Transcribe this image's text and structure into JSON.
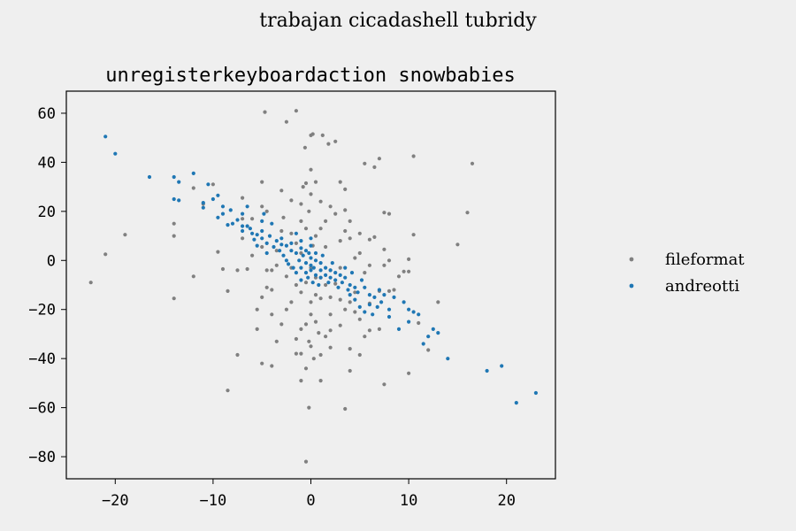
{
  "chart_data": {
    "type": "scatter",
    "suptitle": "trabajan cicadashell tubridy",
    "title": "unregisterkeyboardaction snowbabies",
    "xlabel": "",
    "ylabel": "",
    "xlim": [
      -25,
      25
    ],
    "ylim": [
      -89,
      69
    ],
    "xticks": [
      -20,
      -10,
      0,
      10,
      20
    ],
    "yticks": [
      -80,
      -60,
      -40,
      -20,
      0,
      20,
      40,
      60
    ],
    "xtick_labels": [
      "−20",
      "−10",
      "0",
      "10",
      "20"
    ],
    "ytick_labels": [
      "−80",
      "−60",
      "−40",
      "−20",
      "0",
      "20",
      "40",
      "60"
    ],
    "grid": false,
    "legend_position": "right",
    "series": [
      {
        "name": "fileformat",
        "color": "#808080",
        "points": [
          [
            -22.5,
            -9
          ],
          [
            -21,
            2.5
          ],
          [
            -19,
            10.5
          ],
          [
            -14,
            15
          ],
          [
            -14,
            10
          ],
          [
            -14,
            -15.5
          ],
          [
            -12,
            29.5
          ],
          [
            -12,
            -6.5
          ],
          [
            -11,
            23
          ],
          [
            -10,
            31
          ],
          [
            -9.5,
            3.5
          ],
          [
            -9,
            -3.5
          ],
          [
            -8.5,
            -12.5
          ],
          [
            -8.5,
            -53
          ],
          [
            -7.5,
            -4
          ],
          [
            -7.5,
            -38.5
          ],
          [
            -7,
            25.5
          ],
          [
            -7,
            17
          ],
          [
            -7,
            9
          ],
          [
            -6.5,
            -3.5
          ],
          [
            -6,
            17
          ],
          [
            -6,
            2
          ],
          [
            -5.5,
            -20
          ],
          [
            -5.5,
            -28
          ],
          [
            -5,
            32
          ],
          [
            -5,
            22
          ],
          [
            -5,
            5.5
          ],
          [
            -5,
            -15
          ],
          [
            -5,
            -42
          ],
          [
            -4.7,
            60.5
          ],
          [
            -4.5,
            -4
          ],
          [
            -4.5,
            -11
          ],
          [
            -4.5,
            20
          ],
          [
            -4,
            -4
          ],
          [
            -4,
            -12
          ],
          [
            -4,
            -22
          ],
          [
            -4,
            -43
          ],
          [
            -3.5,
            -33
          ],
          [
            -3.5,
            -2
          ],
          [
            -3.5,
            4
          ],
          [
            -3,
            -26
          ],
          [
            -3,
            28.5
          ],
          [
            -3,
            12
          ],
          [
            -2.8,
            17.5
          ],
          [
            -2.5,
            56.5
          ],
          [
            -2.5,
            -6.5
          ],
          [
            -2.5,
            -20
          ],
          [
            -2,
            -17
          ],
          [
            -2,
            -3
          ],
          [
            -2,
            11
          ],
          [
            -2,
            24.5
          ],
          [
            -1.5,
            61
          ],
          [
            -1.5,
            -32
          ],
          [
            -1.5,
            -38
          ],
          [
            -1.5,
            -10
          ],
          [
            -1.5,
            7
          ],
          [
            -1,
            -38
          ],
          [
            -1,
            -28
          ],
          [
            -1,
            -13
          ],
          [
            -1,
            -49
          ],
          [
            -1,
            16
          ],
          [
            -1,
            23
          ],
          [
            -1,
            3
          ],
          [
            -0.8,
            30
          ],
          [
            -0.6,
            46
          ],
          [
            -0.5,
            31.5
          ],
          [
            -0.5,
            13
          ],
          [
            -0.5,
            -26
          ],
          [
            -0.5,
            -9
          ],
          [
            -0.5,
            -44
          ],
          [
            -0.2,
            20
          ],
          [
            -0.2,
            -33
          ],
          [
            -0.2,
            -60
          ],
          [
            -0.5,
            -82
          ],
          [
            0,
            37
          ],
          [
            0,
            27
          ],
          [
            0,
            -3
          ],
          [
            0,
            -17
          ],
          [
            0,
            -22
          ],
          [
            0,
            -35
          ],
          [
            0,
            51
          ],
          [
            0.2,
            51.5
          ],
          [
            0.2,
            6
          ],
          [
            0.3,
            -40
          ],
          [
            0.5,
            -25
          ],
          [
            0.5,
            -14
          ],
          [
            0.5,
            32
          ],
          [
            0.5,
            10
          ],
          [
            0.5,
            -7
          ],
          [
            0.8,
            -29.5
          ],
          [
            1,
            -15.5
          ],
          [
            1,
            24
          ],
          [
            1,
            13
          ],
          [
            1,
            -7
          ],
          [
            1,
            -49
          ],
          [
            1,
            -38.5
          ],
          [
            1.2,
            51
          ],
          [
            1.5,
            -31
          ],
          [
            1.5,
            16
          ],
          [
            1.5,
            -10
          ],
          [
            1.5,
            5.5
          ],
          [
            1.8,
            47.5
          ],
          [
            2,
            -22
          ],
          [
            2,
            22
          ],
          [
            2,
            -4
          ],
          [
            2,
            -28.5
          ],
          [
            2,
            -35.5
          ],
          [
            2,
            -15
          ],
          [
            2.5,
            19
          ],
          [
            2.5,
            -9.5
          ],
          [
            2.5,
            48.5
          ],
          [
            3,
            32
          ],
          [
            3,
            8
          ],
          [
            3,
            -16
          ],
          [
            3,
            -26.5
          ],
          [
            3,
            -3
          ],
          [
            3.5,
            -60.5
          ],
          [
            3.5,
            29
          ],
          [
            3.5,
            -20
          ],
          [
            3.5,
            12
          ],
          [
            3.5,
            20.5
          ],
          [
            4,
            -36
          ],
          [
            4,
            16
          ],
          [
            4,
            -45
          ],
          [
            4,
            -17
          ],
          [
            4,
            9
          ],
          [
            4.5,
            -21
          ],
          [
            4.5,
            1
          ],
          [
            4.5,
            -13
          ],
          [
            5,
            -38.5
          ],
          [
            5,
            3
          ],
          [
            5,
            -24
          ],
          [
            5,
            11
          ],
          [
            5.5,
            39.5
          ],
          [
            5.5,
            -5
          ],
          [
            5.5,
            -31
          ],
          [
            6,
            -28.5
          ],
          [
            6,
            8.5
          ],
          [
            6,
            -17.5
          ],
          [
            6,
            -2
          ],
          [
            6.5,
            9.5
          ],
          [
            6.5,
            38
          ],
          [
            7,
            41.5
          ],
          [
            7,
            -28
          ],
          [
            7,
            -12.5
          ],
          [
            7.5,
            19.5
          ],
          [
            7.5,
            4.5
          ],
          [
            7.5,
            -2
          ],
          [
            7.5,
            -50.5
          ],
          [
            8,
            19
          ],
          [
            8,
            -12.5
          ],
          [
            8,
            0
          ],
          [
            8.5,
            -12
          ],
          [
            9,
            -6.5
          ],
          [
            9.5,
            -4.5
          ],
          [
            10,
            -4.5
          ],
          [
            10,
            0.5
          ],
          [
            10,
            -46
          ],
          [
            10.5,
            42.5
          ],
          [
            10.5,
            10.5
          ],
          [
            11,
            -25.5
          ],
          [
            12,
            -36.5
          ],
          [
            13,
            -17
          ],
          [
            15,
            6.5
          ],
          [
            16,
            19.5
          ],
          [
            16.5,
            39.5
          ]
        ]
      },
      {
        "name": "andreotti",
        "color": "#1f77b4",
        "points": [
          [
            -21,
            50.5
          ],
          [
            -20,
            43.5
          ],
          [
            -16.5,
            34
          ],
          [
            -14,
            25
          ],
          [
            -14,
            34
          ],
          [
            -13.5,
            24.5
          ],
          [
            -13.5,
            32
          ],
          [
            -12,
            35.5
          ],
          [
            -11,
            23.5
          ],
          [
            -11,
            21.5
          ],
          [
            -10.5,
            31
          ],
          [
            -10,
            25
          ],
          [
            -9.5,
            17.5
          ],
          [
            -9.5,
            26.5
          ],
          [
            -9,
            22
          ],
          [
            -9,
            19
          ],
          [
            -8.5,
            14.5
          ],
          [
            -8.2,
            20.5
          ],
          [
            -8,
            15
          ],
          [
            -7.5,
            16.5
          ],
          [
            -7,
            19
          ],
          [
            -7,
            14
          ],
          [
            -7,
            12
          ],
          [
            -6.5,
            22
          ],
          [
            -6.5,
            14
          ],
          [
            -6.2,
            13
          ],
          [
            -6,
            11
          ],
          [
            -5.8,
            8.5
          ],
          [
            -5.5,
            10.5
          ],
          [
            -5.5,
            6
          ],
          [
            -5,
            9
          ],
          [
            -5,
            12
          ],
          [
            -5,
            16
          ],
          [
            -4.8,
            19
          ],
          [
            -4.5,
            7
          ],
          [
            -4.5,
            3
          ],
          [
            -4.2,
            10
          ],
          [
            -4,
            15
          ],
          [
            -3.8,
            5.5
          ],
          [
            -3.5,
            8
          ],
          [
            -3.2,
            4
          ],
          [
            -3,
            6.5
          ],
          [
            -3,
            9
          ],
          [
            -2.8,
            2
          ],
          [
            -2.5,
            0
          ],
          [
            -2.5,
            6
          ],
          [
            -2.3,
            -1.5
          ],
          [
            -2,
            4
          ],
          [
            -2,
            7
          ],
          [
            -1.8,
            -3
          ],
          [
            -1.5,
            3
          ],
          [
            -1.5,
            -5
          ],
          [
            -1.5,
            11
          ],
          [
            -1.2,
            0
          ],
          [
            -1,
            -3
          ],
          [
            -1,
            5
          ],
          [
            -1,
            -8
          ],
          [
            -1,
            8
          ],
          [
            -0.8,
            2
          ],
          [
            -0.5,
            -1
          ],
          [
            -0.5,
            4
          ],
          [
            -0.5,
            -5
          ],
          [
            -0.3,
            -7
          ],
          [
            -0.2,
            3
          ],
          [
            0,
            -2
          ],
          [
            0,
            1
          ],
          [
            0,
            6
          ],
          [
            0,
            -4
          ],
          [
            0,
            9
          ],
          [
            0.2,
            -9
          ],
          [
            0.3,
            -3
          ],
          [
            0.5,
            0
          ],
          [
            0.5,
            -6
          ],
          [
            0.5,
            3
          ],
          [
            0.8,
            -10
          ],
          [
            1,
            -1
          ],
          [
            1,
            -4
          ],
          [
            1,
            -7
          ],
          [
            1.2,
            2
          ],
          [
            1.5,
            -3
          ],
          [
            1.5,
            -6
          ],
          [
            1.8,
            -9
          ],
          [
            2,
            -4
          ],
          [
            2,
            -7
          ],
          [
            2.2,
            -1
          ],
          [
            2.5,
            -5
          ],
          [
            2.5,
            -8
          ],
          [
            2.8,
            -11
          ],
          [
            3,
            -6
          ],
          [
            3.2,
            -9
          ],
          [
            3.5,
            -3
          ],
          [
            3.5,
            -7
          ],
          [
            3.8,
            -12
          ],
          [
            4,
            -10
          ],
          [
            4,
            -14
          ],
          [
            4.2,
            -5
          ],
          [
            4.5,
            -11
          ],
          [
            4.5,
            -16
          ],
          [
            4.8,
            -13
          ],
          [
            5,
            -19
          ],
          [
            5.2,
            -8
          ],
          [
            5.5,
            -11
          ],
          [
            5.5,
            -21
          ],
          [
            6,
            -14
          ],
          [
            6,
            -18
          ],
          [
            6.3,
            -22
          ],
          [
            6.5,
            -15
          ],
          [
            6.8,
            -19
          ],
          [
            7,
            -12
          ],
          [
            7.2,
            -17
          ],
          [
            7.5,
            -14
          ],
          [
            8,
            -20
          ],
          [
            8,
            -23
          ],
          [
            8.5,
            -15
          ],
          [
            9,
            -28
          ],
          [
            9.5,
            -17
          ],
          [
            10,
            -25
          ],
          [
            10,
            -20
          ],
          [
            10.5,
            -21
          ],
          [
            11,
            -22
          ],
          [
            11.5,
            -34
          ],
          [
            12,
            -31
          ],
          [
            12.5,
            -28
          ],
          [
            13,
            -29.5
          ],
          [
            14,
            -40
          ],
          [
            18,
            -45
          ],
          [
            19.5,
            -43
          ],
          [
            21,
            -58
          ],
          [
            23,
            -54
          ]
        ]
      }
    ]
  }
}
